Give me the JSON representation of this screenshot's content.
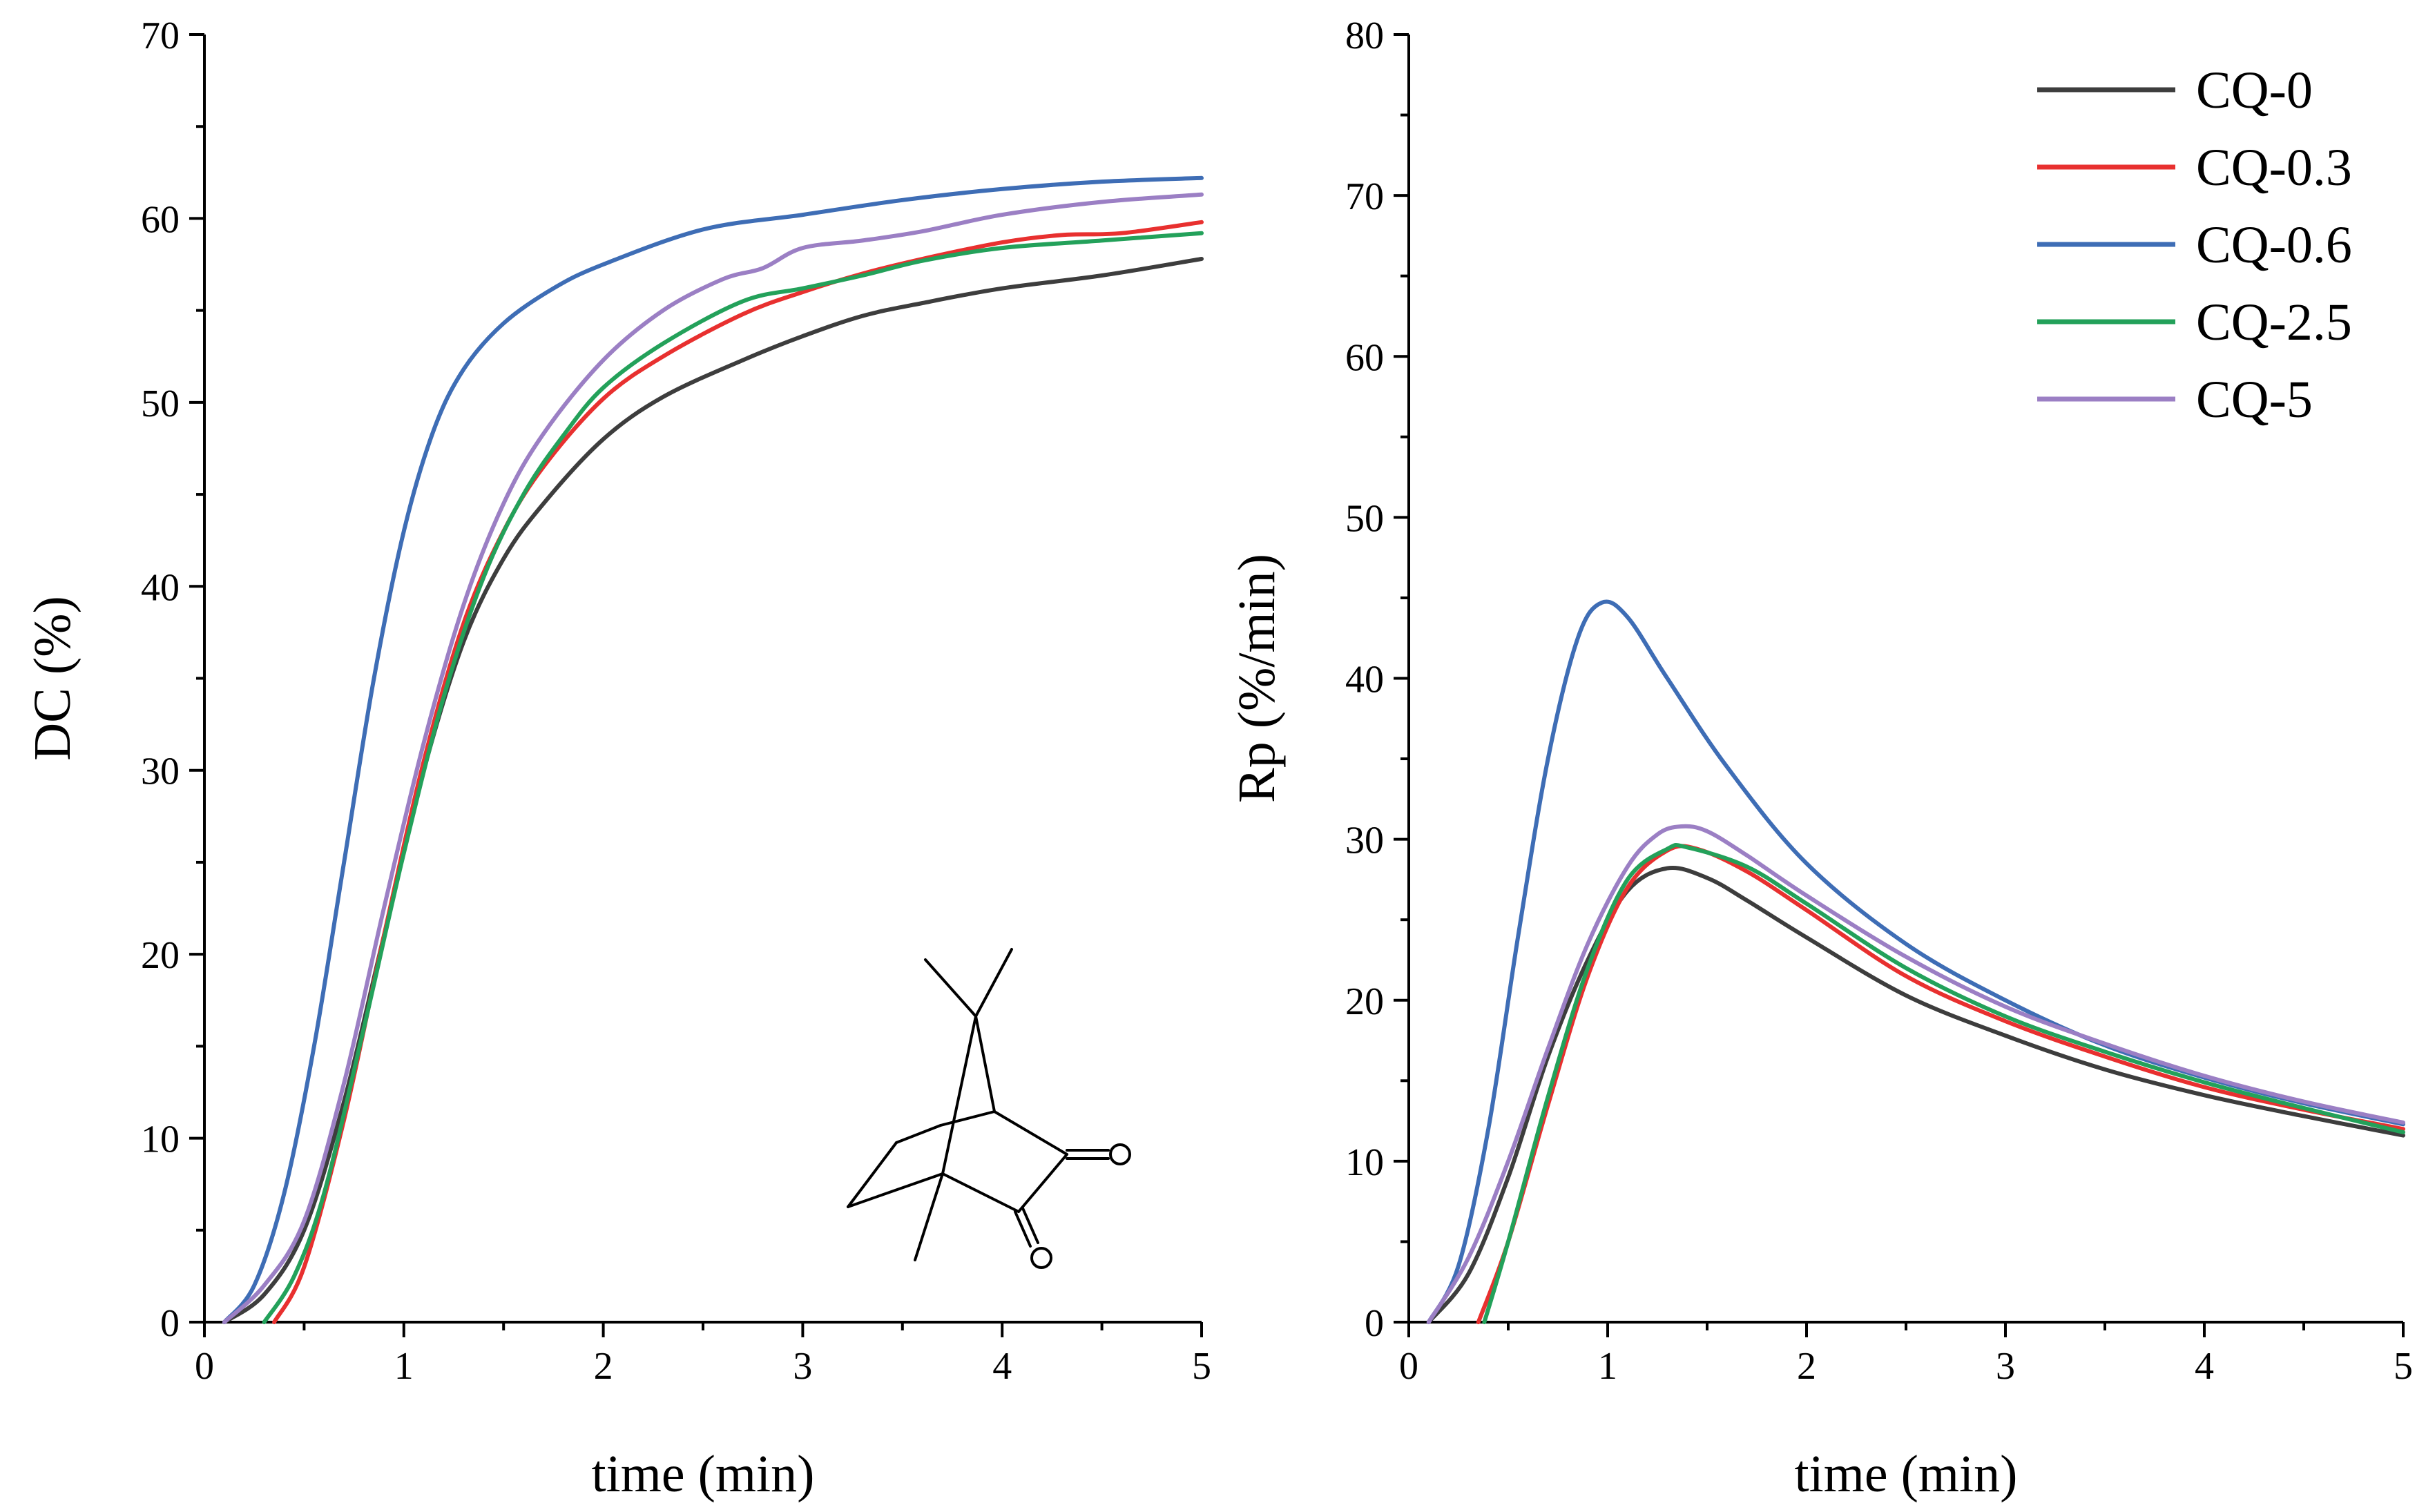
{
  "chart_data": [
    {
      "type": "line",
      "title": "",
      "xlabel": "time (min)",
      "ylabel": "DC (%)",
      "xlim": [
        0,
        5
      ],
      "ylim": [
        0,
        70
      ],
      "xticks": [
        0,
        1,
        2,
        3,
        4,
        5
      ],
      "yticks": [
        0,
        10,
        20,
        30,
        40,
        50,
        60,
        70
      ],
      "x_tick_labels": [
        "0",
        "1",
        "2",
        "3",
        "4",
        "5"
      ],
      "y_tick_labels": [
        "0",
        "10",
        "20",
        "30",
        "40",
        "50",
        "60",
        "70"
      ],
      "grid": false,
      "legend": "none",
      "inset": "camphorquinone structure (bottom-right)",
      "inset_atom_labels": [
        "O",
        "O"
      ],
      "series": [
        {
          "name": "CQ-0",
          "color": "#3d3d3d",
          "x": [
            0.1,
            0.3,
            0.5,
            0.7,
            0.9,
            1.1,
            1.3,
            1.5,
            1.7,
            2.0,
            2.3,
            2.7,
            3.0,
            3.3,
            3.6,
            4.0,
            4.5,
            5.0
          ],
          "y": [
            0,
            1.5,
            5,
            12,
            21,
            30,
            37,
            41.5,
            44.5,
            48,
            50.3,
            52.3,
            53.6,
            54.7,
            55.4,
            56.2,
            56.9,
            57.8
          ]
        },
        {
          "name": "CQ-0.3",
          "color": "#e8302f",
          "x": [
            0.35,
            0.5,
            0.7,
            0.9,
            1.1,
            1.3,
            1.5,
            1.7,
            2.0,
            2.3,
            2.7,
            3.0,
            3.3,
            3.6,
            4.0,
            4.3,
            4.6,
            5.0
          ],
          "y": [
            0,
            3,
            11,
            21,
            30.5,
            38,
            43,
            46.5,
            50.2,
            52.5,
            54.8,
            56,
            57,
            57.8,
            58.7,
            59.1,
            59.2,
            59.8
          ]
        },
        {
          "name": "CQ-0.6",
          "color": "#3e6db5",
          "x": [
            0.1,
            0.25,
            0.4,
            0.55,
            0.7,
            0.85,
            1.0,
            1.15,
            1.3,
            1.5,
            1.75,
            2.0,
            2.5,
            3.0,
            3.5,
            4.0,
            4.5,
            5.0
          ],
          "y": [
            0,
            2,
            7,
            15,
            25,
            35,
            43,
            48.5,
            51.8,
            54.3,
            56.2,
            57.5,
            59.4,
            60.2,
            61.0,
            61.6,
            62.0,
            62.2
          ]
        },
        {
          "name": "CQ-2.5",
          "color": "#23a15a",
          "x": [
            0.3,
            0.45,
            0.6,
            0.8,
            1.0,
            1.2,
            1.4,
            1.6,
            1.8,
            2.0,
            2.3,
            2.7,
            3.0,
            3.3,
            3.6,
            4.0,
            4.5,
            5.0
          ],
          "y": [
            0,
            2.5,
            7,
            16,
            25.5,
            34,
            40.5,
            45,
            48.2,
            50.8,
            53.2,
            55.5,
            56.2,
            56.9,
            57.7,
            58.4,
            58.8,
            59.2
          ]
        },
        {
          "name": "CQ-5",
          "color": "#9b7fc4",
          "x": [
            0.1,
            0.3,
            0.5,
            0.7,
            0.9,
            1.1,
            1.3,
            1.5,
            1.7,
            2.0,
            2.3,
            2.6,
            2.8,
            3.0,
            3.3,
            3.6,
            4.0,
            4.5,
            5.0
          ],
          "y": [
            0,
            2,
            5.5,
            13,
            22.5,
            31.5,
            39,
            44.5,
            48.3,
            52.3,
            55,
            56.7,
            57.3,
            58.4,
            58.8,
            59.3,
            60.2,
            60.9,
            61.3
          ]
        }
      ]
    },
    {
      "type": "line",
      "title": "",
      "xlabel": "time (min)",
      "ylabel": "Rp (%/min)",
      "xlim": [
        0,
        5
      ],
      "ylim": [
        0,
        80
      ],
      "xticks": [
        0,
        1,
        2,
        3,
        4,
        5
      ],
      "yticks": [
        0,
        10,
        20,
        30,
        40,
        50,
        60,
        70,
        80
      ],
      "x_tick_labels": [
        "0",
        "1",
        "2",
        "3",
        "4",
        "5"
      ],
      "y_tick_labels": [
        "0",
        "10",
        "20",
        "30",
        "40",
        "50",
        "60",
        "70",
        "80"
      ],
      "grid": false,
      "legend": "top-right",
      "series": [
        {
          "name": "CQ-0",
          "color": "#3d3d3d",
          "x": [
            0.1,
            0.3,
            0.5,
            0.7,
            0.9,
            1.1,
            1.3,
            1.5,
            1.7,
            2.0,
            2.5,
            3.0,
            3.5,
            4.0,
            4.5,
            5.0
          ],
          "y": [
            0,
            3,
            9,
            16.5,
            22.5,
            26.8,
            28.2,
            27.6,
            26.2,
            23.9,
            20.3,
            17.8,
            15.7,
            14.1,
            12.8,
            11.6
          ]
        },
        {
          "name": "CQ-0.3",
          "color": "#e8302f",
          "x": [
            0.35,
            0.5,
            0.7,
            0.9,
            1.1,
            1.3,
            1.45,
            1.7,
            2.0,
            2.5,
            3.0,
            3.5,
            4.0,
            4.5,
            5.0
          ],
          "y": [
            0,
            5,
            13.5,
            21.5,
            27,
            29.3,
            29.4,
            28,
            25.6,
            21.5,
            18.7,
            16.5,
            14.6,
            13.2,
            12.0
          ]
        },
        {
          "name": "CQ-0.6",
          "color": "#3e6db5",
          "x": [
            0.1,
            0.25,
            0.4,
            0.55,
            0.7,
            0.85,
            0.97,
            1.1,
            1.3,
            1.6,
            2.0,
            2.5,
            3.0,
            3.5,
            4.0,
            4.5,
            5.0
          ],
          "y": [
            0,
            3.5,
            12,
            24,
            35,
            42.5,
            44.7,
            43.8,
            40,
            34.5,
            28.5,
            23.5,
            20,
            17.2,
            15.2,
            13.6,
            12.3
          ]
        },
        {
          "name": "CQ-2.5",
          "color": "#23a15a",
          "x": [
            0.38,
            0.5,
            0.7,
            0.9,
            1.1,
            1.3,
            1.4,
            1.7,
            2.0,
            2.5,
            3.0,
            3.5,
            4.0,
            4.5,
            5.0
          ],
          "y": [
            0,
            5,
            14,
            22,
            27.5,
            29.4,
            29.5,
            28.3,
            26,
            22,
            19,
            16.8,
            14.9,
            13.3,
            11.8
          ]
        },
        {
          "name": "CQ-5",
          "color": "#9b7fc4",
          "x": [
            0.1,
            0.3,
            0.5,
            0.7,
            0.9,
            1.1,
            1.25,
            1.37,
            1.5,
            1.7,
            2.0,
            2.5,
            3.0,
            3.5,
            4.0,
            4.5,
            5.0
          ],
          "y": [
            0,
            4,
            10,
            17,
            23.5,
            28.3,
            30.3,
            30.8,
            30.5,
            29,
            26.5,
            22.7,
            19.6,
            17.3,
            15.3,
            13.7,
            12.4
          ]
        }
      ]
    }
  ]
}
